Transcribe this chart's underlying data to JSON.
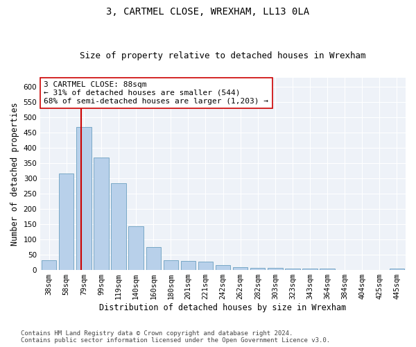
{
  "title": "3, CARTMEL CLOSE, WREXHAM, LL13 0LA",
  "subtitle": "Size of property relative to detached houses in Wrexham",
  "xlabel": "Distribution of detached houses by size in Wrexham",
  "ylabel": "Number of detached properties",
  "categories": [
    "38sqm",
    "58sqm",
    "79sqm",
    "99sqm",
    "119sqm",
    "140sqm",
    "160sqm",
    "180sqm",
    "201sqm",
    "221sqm",
    "242sqm",
    "262sqm",
    "282sqm",
    "303sqm",
    "323sqm",
    "343sqm",
    "364sqm",
    "384sqm",
    "404sqm",
    "425sqm",
    "445sqm"
  ],
  "values": [
    32,
    315,
    468,
    369,
    284,
    143,
    76,
    32,
    29,
    27,
    16,
    9,
    7,
    6,
    5,
    5,
    5,
    0,
    0,
    0,
    5
  ],
  "bar_color": "#b8d0ea",
  "bar_edge_color": "#6a9fc0",
  "vline_x_index": 2,
  "vline_color": "#cc0000",
  "annotation_line1": "3 CARTMEL CLOSE: 88sqm",
  "annotation_line2": "← 31% of detached houses are smaller (544)",
  "annotation_line3": "68% of semi-detached houses are larger (1,203) →",
  "annotation_box_color": "#ffffff",
  "annotation_box_edge_color": "#cc0000",
  "ylim": [
    0,
    630
  ],
  "yticks": [
    0,
    50,
    100,
    150,
    200,
    250,
    300,
    350,
    400,
    450,
    500,
    550,
    600
  ],
  "footer_line1": "Contains HM Land Registry data © Crown copyright and database right 2024.",
  "footer_line2": "Contains public sector information licensed under the Open Government Licence v3.0.",
  "bg_color": "#eef2f8",
  "title_fontsize": 10,
  "subtitle_fontsize": 9,
  "xlabel_fontsize": 8.5,
  "ylabel_fontsize": 8.5,
  "tick_fontsize": 7.5,
  "annotation_fontsize": 8,
  "footer_fontsize": 6.5
}
